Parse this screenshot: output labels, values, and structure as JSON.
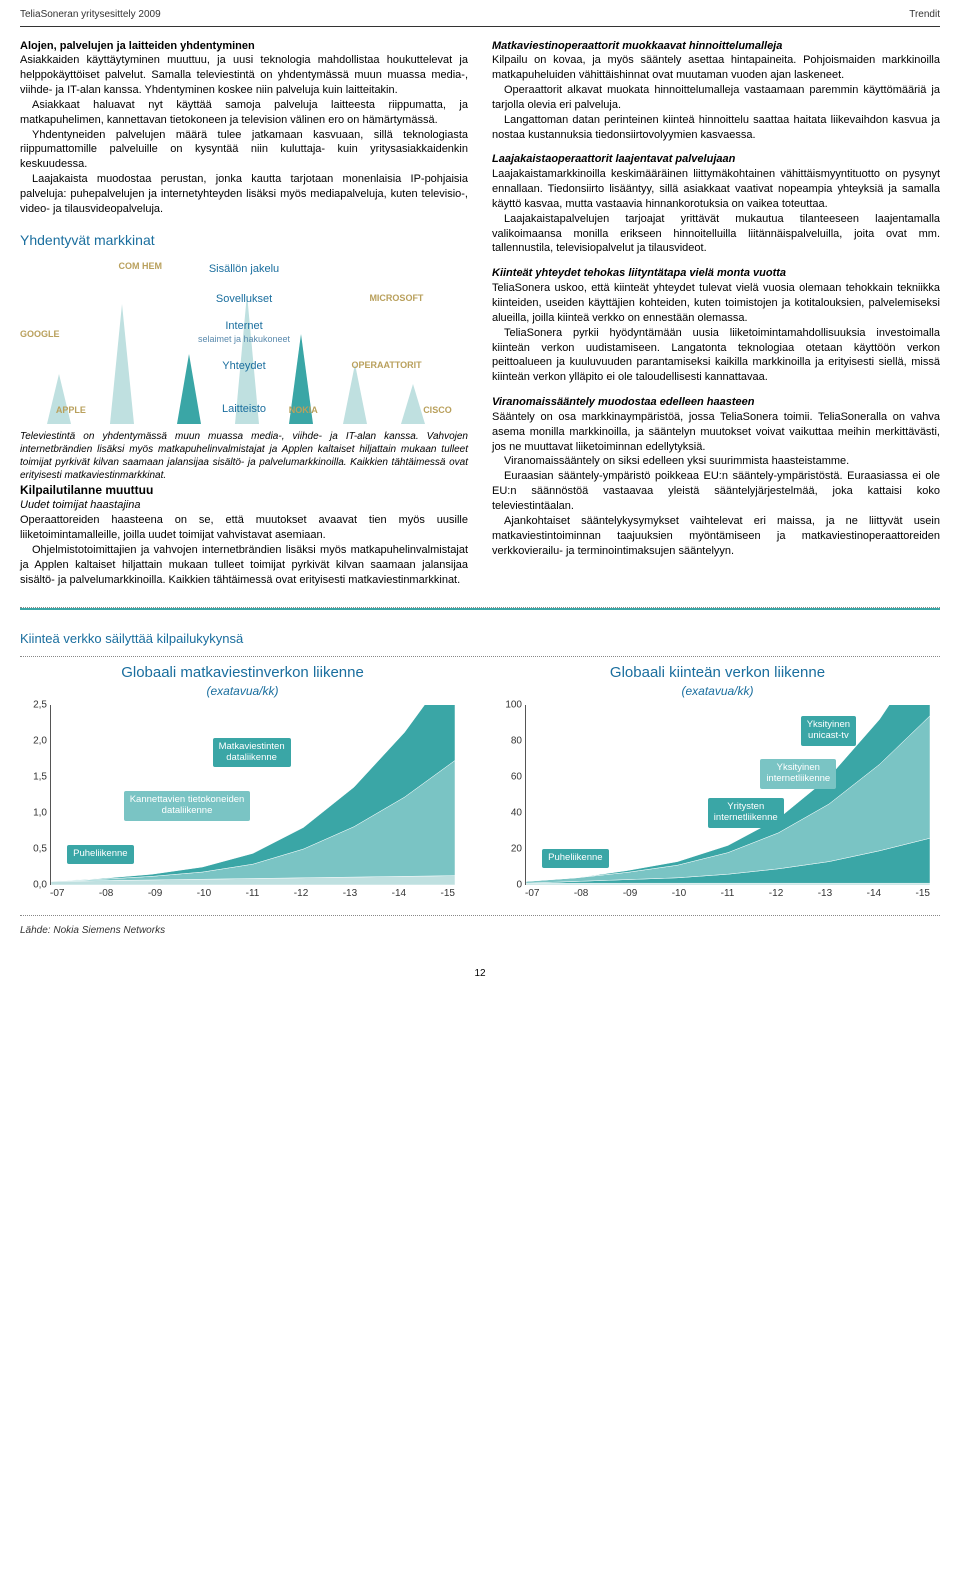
{
  "header": {
    "left": "TeliaSoneran yritysesittely 2009",
    "right": "Trendit"
  },
  "left_col": {
    "h1": "Alojen, palvelujen ja laitteiden yhdentyminen",
    "p1": "Asiakkaiden käyttäytyminen muuttuu, ja uusi teknologia mahdollistaa houkuttelevat ja helppokäyttöiset palvelut. Samalla televiestintä on yhdentymässä muun muassa media-, viihde- ja IT-alan kanssa. Yhdentyminen koskee niin palveluja kuin laitteitakin.",
    "p2": "Asiakkaat haluavat nyt käyttää samoja palveluja laitteesta riippumatta, ja matkapuhelimen, kannettavan tietokoneen ja television välinen ero on hämärtymässä.",
    "p3": "Yhdentyneiden palvelujen määrä tulee jatkamaan kasvuaan, sillä teknologiasta riippumattomille palveluille on kysyntää niin kuluttaja- kuin yritysasiakkaidenkin keskuudessa.",
    "p4": "Laajakaista muodostaa perustan, jonka kautta tarjotaan monenlaisia IP-pohjaisia palveluja: puhepalvelujen ja internetyhteyden lisäksi myös mediapalveluja, kuten televisio-, video- ja tilausvideopalveluja.",
    "diagram_title": "Yhdentyvät markkinat",
    "diagram": {
      "layers": [
        "Sisällön jakelu",
        "Sovellukset",
        "Internet",
        "Yhteydet",
        "Laitteisto"
      ],
      "layers_sub": "selaimet ja hakukoneet",
      "brands": {
        "comhem": "COM HEM",
        "microsoft": "MICROSOFT",
        "google": "GOOGLE",
        "operaattorit": "OPERAATTORIT",
        "apple": "APPLE",
        "nokia": "NOKIA",
        "cisco": "CISCO"
      },
      "peak_color_light": "#bfe0e0",
      "peak_color_dark": "#3aa6a6"
    },
    "diagram_caption": "Televiestintä on yhdentymässä muun muassa media-, viihde- ja IT-alan kanssa. Vahvojen internetbrändien lisäksi myös matkapuhelinvalmistajat ja Applen kaltaiset hiljattain mukaan tulleet toimijat pyrkivät kilvan saamaan jalansijaa sisältö- ja palvelumarkkinoilla. Kaikkien tähtäimessä ovat erityisesti matkaviestinmarkkinat.",
    "h2": "Kilpailutilanne muuttuu",
    "h2sub": "Uudet toimijat haastajina",
    "p5": "Operaattoreiden haasteena on se, että muutokset avaavat tien myös uusille liiketoimintamalleille, joilla uudet toimijat vahvistavat asemiaan.",
    "p6": "Ohjelmistotoimittajien ja vahvojen internetbrändien lisäksi myös matkapuhelinvalmistajat ja Applen kaltaiset hiljattain mukaan tulleet toimijat pyrkivät kilvan saamaan jalansijaa sisältö- ja palvelumarkkinoilla. Kaikkien tähtäimessä ovat erityisesti matkaviestinmarkkinat."
  },
  "right_col": {
    "h1": "Matkaviestinoperaattorit muokkaavat hinnoittelumalleja",
    "p1": "Kilpailu on kovaa, ja myös sääntely asettaa hintapaineita. Pohjoismaiden markkinoilla matkapuheluiden vähittäishinnat ovat muutaman vuoden ajan laskeneet.",
    "p2": "Operaattorit alkavat muokata hinnoittelumalleja vastaamaan paremmin käyttömääriä ja tarjolla olevia eri palveluja.",
    "p3": "Langattoman datan perinteinen kiinteä hinnoittelu saattaa haitata liikevaihdon kasvua ja nostaa kustannuksia tiedonsiirtovolyymien kasvaessa.",
    "h2": "Laajakaistaoperaattorit laajentavat palvelujaan",
    "p4": "Laajakaistamarkkinoilla keskimääräinen liittymäkohtainen vähittäismyyntituotto on pysynyt ennallaan. Tiedonsiirto lisääntyy, sillä asiakkaat vaativat nopeampia yhteyksiä ja samalla käyttö kasvaa, mutta vastaavia hinnankorotuksia on vaikea toteuttaa.",
    "p5": "Laajakaistapalvelujen tarjoajat yrittävät mukautua tilanteeseen laajentamalla valikoimaansa monilla erikseen hinnoitelluilla liitännäispalveluilla, joita ovat mm. tallennustila, televisiopalvelut ja tilausvideot.",
    "h3": "Kiinteät yhteydet tehokas liityntätapa vielä monta vuotta",
    "p6": "TeliaSonera uskoo, että kiinteät yhteydet tulevat vielä vuosia olemaan tehokkain tekniikka kiinteiden, useiden käyttäjien kohteiden, kuten toimistojen ja kotitalouksien, palvelemiseksi alueilla, joilla kiinteä verkko on ennestään olemassa.",
    "p7": "TeliaSonera pyrkii hyödyntämään uusia liiketoimintamahdollisuuksia investoimalla kiinteän verkon uudistamiseen. Langatonta teknologiaa otetaan käyttöön verkon peittoalueen ja kuuluvuuden parantamiseksi kaikilla markkinoilla ja erityisesti siellä, missä kiinteän verkon ylläpito ei ole taloudellisesti kannattavaa.",
    "h4": "Viranomaissääntely muodostaa edelleen haasteen",
    "p8": "Sääntely on osa markkinaympäristöä, jossa TeliaSonera toimii. TeliaSoneralla on vahva asema monilla markkinoilla, ja sääntelyn muutokset voivat vaikuttaa meihin merkittävästi, jos ne muuttavat liiketoiminnan edellytyksiä.",
    "p9": "Viranomaissääntely on siksi edelleen yksi suurimmista haasteistamme.",
    "p10": "Euraasian sääntely-ympäristö poikkeaa EU:n sääntely-ympäristöstä. Euraasiassa ei ole EU:n säännöstöä vastaavaa yleistä sääntelyjärjestelmää, joka kattaisi koko televiestintäalan.",
    "p11": "Ajankohtaiset sääntelykysymykset vaihtelevat eri maissa, ja ne liittyvät usein matkaviestintoiminnan taajuuksien myöntämiseen ja matkaviestinoperaattoreiden verkkovierailu- ja terminointimaksujen sääntelyyn."
  },
  "charts": {
    "header": "Kiinteä verkko säilyttää kilpailukykynsä",
    "source": "Lähde: Nokia Siemens Networks",
    "xlabels": [
      "-07",
      "-08",
      "-09",
      "-10",
      "-11",
      "-12",
      "-13",
      "-14",
      "-15"
    ],
    "chart_a": {
      "title": "Globaali matkaviestinverkon liikenne",
      "sub": "(exatavua/kk)",
      "ylim": [
        0,
        2.5
      ],
      "ytick_step": 0.5,
      "yticks": [
        "0,0",
        "0,5",
        "1,0",
        "1,5",
        "2,0",
        "2,5"
      ],
      "labels": [
        {
          "text": "Matkaviestinten\\ndataliikenne",
          "color": "#3aa6a6"
        },
        {
          "text": "Kannettavien tietokoneiden\\ndataliikenne",
          "color": "#7ac4c4"
        },
        {
          "text": "Puheliikenne",
          "color": "#3aa6a6"
        }
      ],
      "series": {
        "voice": {
          "color": "#bfe0e0",
          "data": [
            0.05,
            0.06,
            0.07,
            0.08,
            0.09,
            0.1,
            0.11,
            0.12,
            0.13
          ]
        },
        "laptop": {
          "color": "#7ac4c4",
          "data": [
            0.0,
            0.02,
            0.05,
            0.1,
            0.2,
            0.4,
            0.7,
            1.1,
            1.6
          ]
        },
        "mobile": {
          "color": "#3aa6a6",
          "data": [
            0.0,
            0.01,
            0.03,
            0.07,
            0.15,
            0.3,
            0.55,
            0.9,
            1.35
          ]
        }
      }
    },
    "chart_b": {
      "title": "Globaali kiinteän verkon liikenne",
      "sub": "(exatavua/kk)",
      "ylim": [
        0,
        100
      ],
      "ytick_step": 20,
      "yticks": [
        "0",
        "20",
        "40",
        "60",
        "80",
        "100"
      ],
      "labels": [
        {
          "text": "Yksityinen\\nunicast-tv",
          "color": "#3aa6a6"
        },
        {
          "text": "Yksityinen\\ninternetliikenne",
          "color": "#7ac4c4"
        },
        {
          "text": "Yritysten\\ninternetliikenne",
          "color": "#3aa6a6"
        },
        {
          "text": "Puheliikenne",
          "color": "#3aa6a6"
        }
      ],
      "series": {
        "voice": {
          "color": "#bfe0e0",
          "data": [
            1,
            1,
            1,
            1,
            1,
            1,
            1,
            1,
            1
          ]
        },
        "business": {
          "color": "#3aa6a6",
          "data": [
            0,
            1,
            2,
            3,
            5,
            8,
            12,
            18,
            25
          ]
        },
        "consumer": {
          "color": "#7ac4c4",
          "data": [
            1,
            2,
            4,
            7,
            12,
            20,
            32,
            48,
            68
          ]
        },
        "unicast": {
          "color": "#3aa6a6",
          "data": [
            0,
            0,
            1,
            2,
            4,
            8,
            15,
            25,
            40
          ]
        }
      }
    }
  },
  "page_number": "12"
}
